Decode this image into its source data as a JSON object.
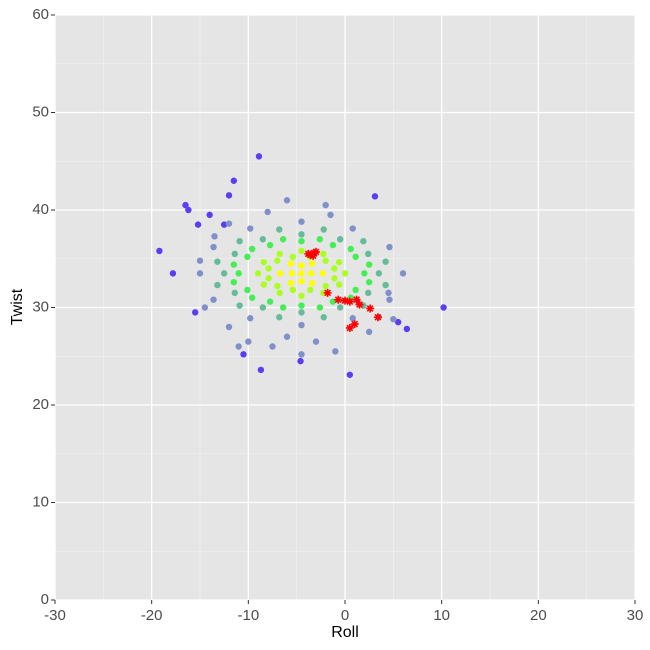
{
  "chart_data": {
    "type": "scatter",
    "xlabel": "Roll",
    "ylabel": "Twist",
    "xlim": [
      -30,
      30
    ],
    "ylim": [
      0,
      60
    ],
    "xticks": [
      -30,
      -20,
      -10,
      0,
      10,
      20,
      30
    ],
    "yticks": [
      0,
      10,
      20,
      30,
      40,
      50,
      60
    ],
    "xminorticks": [
      -25,
      -15,
      -5,
      5,
      15,
      25
    ],
    "yminorticks": [
      5,
      15,
      25,
      35,
      45,
      55
    ],
    "grid": true,
    "series": [
      {
        "color": "#5b3ef2",
        "marker": "circle",
        "x": [
          -8.9,
          -11.5,
          -12,
          -16.5,
          -16.2,
          -19.2,
          -17.8,
          -15.2,
          -14,
          -12.5,
          -10.5,
          -8.7,
          0.5,
          10.2,
          6.4,
          3.1,
          -4.6,
          -15.5,
          5.5
        ],
        "values": [
          45.5,
          43.0,
          41.5,
          40.5,
          40.0,
          35.8,
          33.5,
          38.5,
          39.5,
          38.5,
          25.2,
          23.6,
          23.1,
          30.0,
          27.8,
          41.4,
          24.5,
          29.5,
          28.5
        ]
      },
      {
        "color": "#8090c8",
        "marker": "circle",
        "x": [
          6.0,
          4.6,
          0.8,
          -4.5,
          -9.8,
          -13.6,
          -15.0,
          -13.6,
          -9.8,
          -4.5,
          0.8,
          4.6,
          -2,
          -6,
          -1.5,
          -8,
          3.5,
          -12,
          -10,
          -6,
          -3,
          -1,
          2.5,
          5,
          4.5,
          -14.5,
          -15,
          -12,
          -13.5,
          -11,
          -7.5,
          -4.5
        ],
        "values": [
          33.5,
          36.2,
          38.1,
          38.8,
          38.1,
          36.2,
          33.5,
          30.8,
          28.9,
          28.2,
          28.9,
          30.8,
          40.5,
          41,
          39.5,
          39.8,
          29,
          28,
          26.5,
          27,
          26.5,
          25.5,
          27.5,
          28.8,
          31.5,
          30,
          34.8,
          38.6,
          37.3,
          26,
          26,
          25.2
        ]
      },
      {
        "color": "#66bb99",
        "marker": "circle",
        "x": [
          3.5,
          2.4,
          -0.5,
          -4.5,
          -8.5,
          -11.4,
          -12.5,
          -11.4,
          -8.5,
          -4.5,
          -0.5,
          2.4,
          4.2,
          1.9,
          -2.2,
          -6.8,
          -10.9,
          -13.2,
          -13.2,
          -10.9,
          -6.8,
          -2.2,
          1.9,
          4.2
        ],
        "values": [
          33.5,
          35.5,
          37.0,
          37.5,
          37.0,
          35.5,
          33.5,
          31.5,
          30.0,
          29.5,
          30.0,
          31.5,
          34.7,
          36.8,
          38.0,
          38.0,
          36.8,
          34.7,
          32.3,
          30.2,
          29.0,
          29.0,
          30.2,
          32.3
        ]
      },
      {
        "color": "#44ee55",
        "marker": "circle",
        "x": [
          2.0,
          1.1,
          -1.25,
          -4.5,
          -7.75,
          -10.1,
          -11,
          -10.1,
          -7.75,
          -4.5,
          -1.25,
          1.1,
          2.5,
          0.6,
          -2.6,
          -6.4,
          -9.6,
          -11.5,
          -11.5,
          -9.6,
          -6.4,
          -2.6,
          0.6,
          2.5
        ],
        "values": [
          33.5,
          35.2,
          36.4,
          36.8,
          36.4,
          35.2,
          33.5,
          31.8,
          30.6,
          30.2,
          30.6,
          31.8,
          34.4,
          36.0,
          37.0,
          37.0,
          36.0,
          34.4,
          32.6,
          31.0,
          30.0,
          30.0,
          31.0,
          32.6
        ]
      },
      {
        "color": "#aaff22",
        "marker": "circle",
        "x": [
          0,
          -0.6,
          -2.25,
          -4.5,
          -6.75,
          -8.4,
          -9,
          -8.4,
          -6.75,
          -4.5,
          -2.25,
          -0.6,
          -1.1,
          -2.0,
          -3.6,
          -5.4,
          -7.0,
          -7.9,
          -7.9,
          -7.0,
          -5.4,
          -3.6,
          -2.0,
          -1.1
        ],
        "values": [
          33.5,
          34.65,
          35.5,
          35.8,
          35.5,
          34.65,
          33.5,
          32.35,
          31.5,
          31.2,
          31.5,
          32.35,
          34.0,
          34.8,
          35.2,
          35.2,
          34.8,
          34.0,
          33.0,
          32.2,
          31.8,
          31.8,
          32.2,
          33.0
        ]
      },
      {
        "color": "#ffff00",
        "marker": "circle",
        "x": [
          -2.3,
          -3.4,
          -5.6,
          -6.7,
          -5.6,
          -3.4,
          -4.5,
          -3.5,
          -5.5,
          -4.5,
          -4.5
        ],
        "values": [
          33.5,
          34.5,
          34.5,
          33.5,
          32.5,
          32.5,
          33.5,
          33.5,
          33.5,
          34.3,
          32.7
        ]
      },
      {
        "color": "#ff0000",
        "marker": "star",
        "x": [
          -3.2,
          -3.6,
          -3.0,
          -3.8,
          -3.3,
          -1.8,
          -0.7,
          0,
          0.5,
          1.2,
          1.5,
          2.6,
          3.4,
          1.0,
          0.5
        ],
        "values": [
          35.6,
          35.4,
          35.7,
          35.5,
          35.3,
          31.5,
          30.8,
          30.7,
          30.6,
          30.8,
          30.3,
          29.9,
          29.0,
          28.3,
          27.9
        ]
      }
    ]
  }
}
